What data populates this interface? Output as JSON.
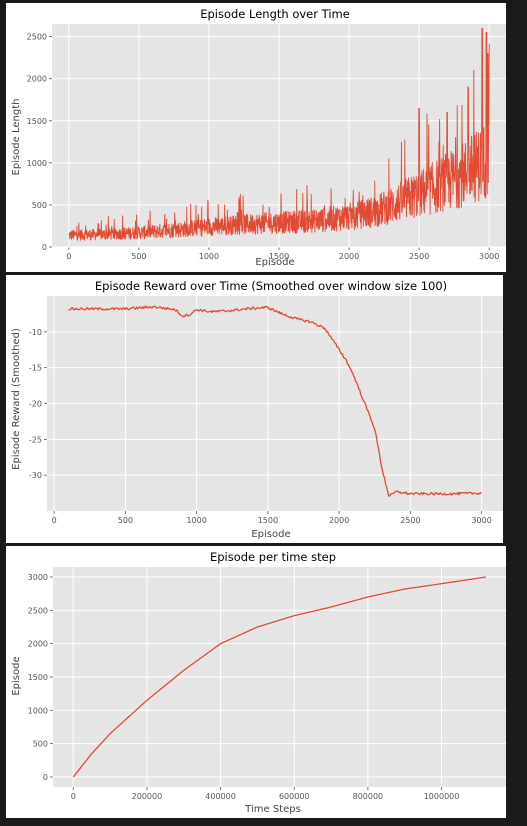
{
  "chart_data": [
    {
      "type": "line",
      "title": "Episode Length over Time",
      "xlabel": "Episode",
      "ylabel": "Episode Length",
      "xlim": [
        -120,
        3120
      ],
      "ylim": [
        0,
        2650
      ],
      "xticks": [
        0,
        500,
        1000,
        1500,
        2000,
        2500,
        3000
      ],
      "yticks": [
        0,
        500,
        1000,
        1500,
        2000,
        2500
      ],
      "grid": true,
      "color": "#e24a33",
      "noisy": true,
      "points": [
        [
          0,
          140
        ],
        [
          250,
          150
        ],
        [
          500,
          170
        ],
        [
          800,
          210
        ],
        [
          1000,
          240
        ],
        [
          1250,
          270
        ],
        [
          1500,
          290
        ],
        [
          1750,
          310
        ],
        [
          2000,
          360
        ],
        [
          2200,
          430
        ],
        [
          2400,
          560
        ],
        [
          2600,
          700
        ],
        [
          2800,
          850
        ],
        [
          2950,
          1000
        ],
        [
          3000,
          1100
        ]
      ],
      "peaks": [
        [
          2500,
          1650
        ],
        [
          2700,
          1600
        ],
        [
          2850,
          1900
        ],
        [
          2950,
          2600
        ],
        [
          2980,
          2550
        ],
        [
          2990,
          2300
        ]
      ]
    },
    {
      "type": "line",
      "title": "Episode Reward over Time (Smoothed over window size 100)",
      "xlabel": "Episode",
      "ylabel": "Episode Reward (Smoothed)",
      "xlim": [
        -50,
        3150
      ],
      "ylim": [
        -35,
        -5
      ],
      "xticks": [
        0,
        500,
        1000,
        1500,
        2000,
        2500,
        3000
      ],
      "yticks": [
        -10,
        -15,
        -20,
        -25,
        -30
      ],
      "grid": true,
      "color": "#e24a33",
      "noisy": false,
      "points": [
        [
          100,
          -6.8
        ],
        [
          300,
          -6.8
        ],
        [
          500,
          -6.8
        ],
        [
          700,
          -6.5
        ],
        [
          850,
          -6.9
        ],
        [
          900,
          -7.8
        ],
        [
          950,
          -7.6
        ],
        [
          1000,
          -6.9
        ],
        [
          1100,
          -7.2
        ],
        [
          1200,
          -7.1
        ],
        [
          1300,
          -6.9
        ],
        [
          1400,
          -6.7
        ],
        [
          1500,
          -6.6
        ],
        [
          1600,
          -7.5
        ],
        [
          1700,
          -8.2
        ],
        [
          1800,
          -8.6
        ],
        [
          1900,
          -9.5
        ],
        [
          2000,
          -12.5
        ],
        [
          2050,
          -14
        ],
        [
          2100,
          -16
        ],
        [
          2150,
          -18.5
        ],
        [
          2200,
          -21
        ],
        [
          2250,
          -23.5
        ],
        [
          2300,
          -29
        ],
        [
          2350,
          -33
        ],
        [
          2400,
          -32.3
        ],
        [
          2500,
          -32.6
        ],
        [
          2600,
          -32.6
        ],
        [
          2800,
          -32.6
        ],
        [
          3000,
          -32.5
        ]
      ]
    },
    {
      "type": "line",
      "title": "Episode per time step",
      "xlabel": "Time Steps",
      "ylabel": "Episode",
      "xlim": [
        -55000,
        1175000
      ],
      "ylim": [
        -150,
        3150
      ],
      "xticks": [
        0,
        200000,
        400000,
        600000,
        800000,
        1000000
      ],
      "yticks": [
        0,
        500,
        1000,
        1500,
        2000,
        2500,
        3000
      ],
      "grid": true,
      "color": "#e24a33",
      "noisy": false,
      "points": [
        [
          0,
          0
        ],
        [
          50000,
          350
        ],
        [
          100000,
          650
        ],
        [
          200000,
          1150
        ],
        [
          300000,
          1600
        ],
        [
          400000,
          2000
        ],
        [
          500000,
          2250
        ],
        [
          600000,
          2420
        ],
        [
          700000,
          2550
        ],
        [
          800000,
          2700
        ],
        [
          900000,
          2820
        ],
        [
          1000000,
          2900
        ],
        [
          1120000,
          3000
        ]
      ]
    }
  ]
}
